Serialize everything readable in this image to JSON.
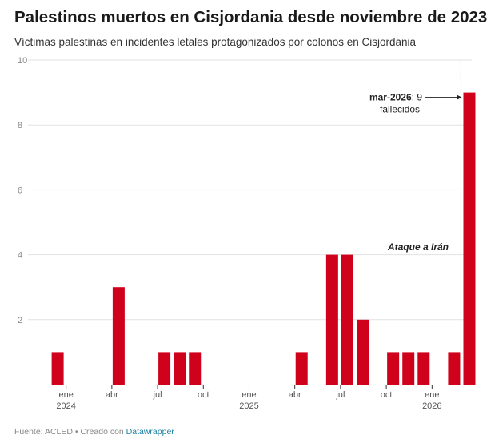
{
  "title": "Palestinos muertos en Cisjordania desde noviembre de 2023",
  "subtitle": "Víctimas palestinas en incidentes letales protagonizados por colonos en Cisjordania",
  "footer": {
    "source": "Fuente: ACLED • Creado con ",
    "tool": "Datawrapper"
  },
  "chart_data": {
    "type": "bar",
    "title": "Palestinos muertos en Cisjordania desde noviembre de 2023",
    "subtitle": "Víctimas palestinas en incidentes letales protagonizados por colonos en Cisjordania",
    "xlabel": "",
    "ylabel": "",
    "ylim": [
      0,
      10
    ],
    "yticks": [
      2,
      4,
      6,
      8,
      10
    ],
    "grid": true,
    "categories": [
      "2023-11",
      "2023-12",
      "2024-01",
      "2024-02",
      "2024-03",
      "2024-04",
      "2024-05",
      "2024-06",
      "2024-07",
      "2024-08",
      "2024-09",
      "2024-10",
      "2024-11",
      "2024-12",
      "2025-01",
      "2025-02",
      "2025-03",
      "2025-04",
      "2025-05",
      "2025-06",
      "2025-07",
      "2025-08",
      "2025-09",
      "2025-10",
      "2025-11",
      "2025-12",
      "2026-01",
      "2026-02",
      "2026-03"
    ],
    "values": [
      0,
      1,
      0,
      0,
      0,
      3,
      0,
      0,
      1,
      1,
      1,
      0,
      0,
      0,
      0,
      0,
      0,
      1,
      0,
      4,
      4,
      2,
      0,
      1,
      1,
      1,
      0,
      1,
      9
    ],
    "x_tick_labels": [
      {
        "month": "2024-01",
        "label": "ene",
        "year": "2024"
      },
      {
        "month": "2024-04",
        "label": "abr",
        "year": ""
      },
      {
        "month": "2024-07",
        "label": "jul",
        "year": ""
      },
      {
        "month": "2024-10",
        "label": "oct",
        "year": ""
      },
      {
        "month": "2025-01",
        "label": "ene",
        "year": "2025"
      },
      {
        "month": "2025-04",
        "label": "abr",
        "year": ""
      },
      {
        "month": "2025-07",
        "label": "jul",
        "year": ""
      },
      {
        "month": "2025-10",
        "label": "oct",
        "year": ""
      },
      {
        "month": "2026-01",
        "label": "ene",
        "year": "2026"
      }
    ],
    "bar_color": "#d0021b",
    "annotations": [
      {
        "month": "2026-03",
        "value": 9,
        "bold": "mar-2026",
        "text": ": 9",
        "text2": "fallecidos"
      },
      {
        "month": "2026-03",
        "value": 4.2,
        "text": "Ataque a Irán",
        "style": "bold-italic"
      }
    ],
    "reference_line": {
      "month": "2026-03",
      "style": "dotted"
    }
  }
}
